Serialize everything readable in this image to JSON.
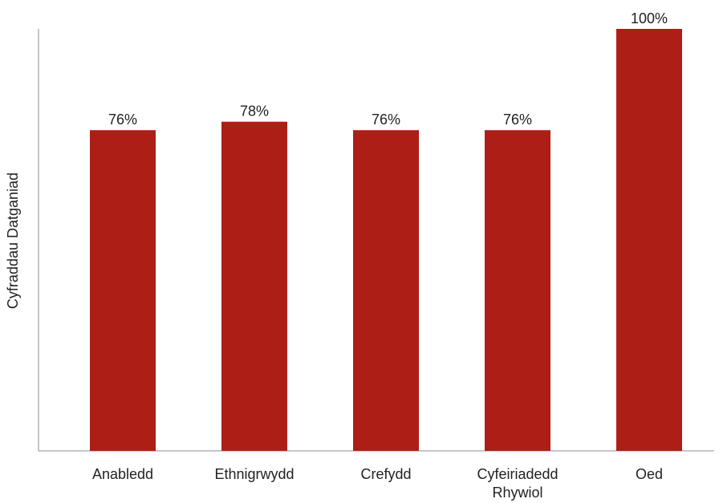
{
  "chart_data": {
    "type": "bar",
    "categories": [
      [
        "Anabledd"
      ],
      [
        "Ethnigrwydd"
      ],
      [
        "Crefydd"
      ],
      [
        "Cyfeiriadedd",
        "Rhywiol"
      ],
      [
        "Oed"
      ]
    ],
    "values": [
      76,
      78,
      76,
      76,
      100
    ],
    "value_labels": [
      "76%",
      "78%",
      "76%",
      "76%",
      "100%"
    ],
    "unit": "%",
    "title": "",
    "xlabel": "",
    "ylabel": "Cyfraddau Datganiad",
    "ylim": [
      0,
      100
    ],
    "grid": false,
    "legend": "none",
    "bar_color": "#ad1e17"
  }
}
